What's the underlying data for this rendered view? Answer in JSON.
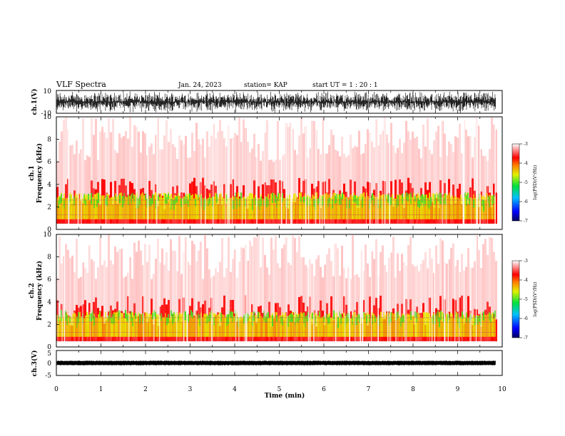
{
  "header": {
    "title": "VLF Spectra",
    "date": "Jan. 24, 2023",
    "station": "station= KAP",
    "start": "start  UT =   1 : 20 : 1"
  },
  "chart_data": [
    {
      "type": "line",
      "name": "ch1-waveform",
      "ylabel": "ch.1(V)",
      "ylim": [
        -10,
        10
      ],
      "yticks": [
        "10",
        "-10"
      ],
      "xlim": [
        0,
        10
      ],
      "x_end": 9.85
    },
    {
      "type": "heatmap",
      "name": "ch1-spectrogram",
      "ylabel": "ch.1\nFrequency (kHz)",
      "ylabel_lines": [
        "ch.1",
        "Frequency (kHz)"
      ],
      "ylim": [
        0,
        10
      ],
      "yticks": [
        "0",
        "2",
        "4",
        "6",
        "8",
        "10"
      ],
      "xlim": [
        0,
        10
      ],
      "x_end": 9.85,
      "colorbar": {
        "label": "log(PSD)(V²/Hz)",
        "range": [
          -7,
          -3
        ],
        "ticks": [
          "-3",
          "-4",
          "-5",
          "-6",
          "-7"
        ]
      }
    },
    {
      "type": "heatmap",
      "name": "ch2-spectrogram",
      "ylabel": "ch.2\nFrequency (kHz)",
      "ylabel_lines": [
        "ch.2",
        "Frequency (kHz)"
      ],
      "ylim": [
        0,
        10
      ],
      "yticks": [
        "0",
        "2",
        "4",
        "6",
        "8",
        "10"
      ],
      "xlim": [
        0,
        10
      ],
      "x_end": 9.85,
      "colorbar": {
        "label": "log(PSD)(V²/Hz)",
        "range": [
          -7,
          -3
        ],
        "ticks": [
          "-3",
          "-4",
          "-5",
          "-6",
          "-7"
        ]
      }
    },
    {
      "type": "line",
      "name": "ch3-waveform",
      "ylabel": "ch.3(V)",
      "ylim": [
        -5,
        5
      ],
      "yticks": [
        "5",
        "0",
        "-5"
      ],
      "xlim": [
        0,
        10
      ],
      "x_end": 9.85,
      "xlabel": "Time (min)",
      "xticks": [
        "0",
        "1",
        "2",
        "3",
        "4",
        "5",
        "6",
        "7",
        "8",
        "9",
        "10"
      ]
    }
  ],
  "colors": {
    "band_yellow": "#e8e800",
    "band_green": "#44dd22",
    "red": "#ff0000",
    "trace": "#000000"
  }
}
